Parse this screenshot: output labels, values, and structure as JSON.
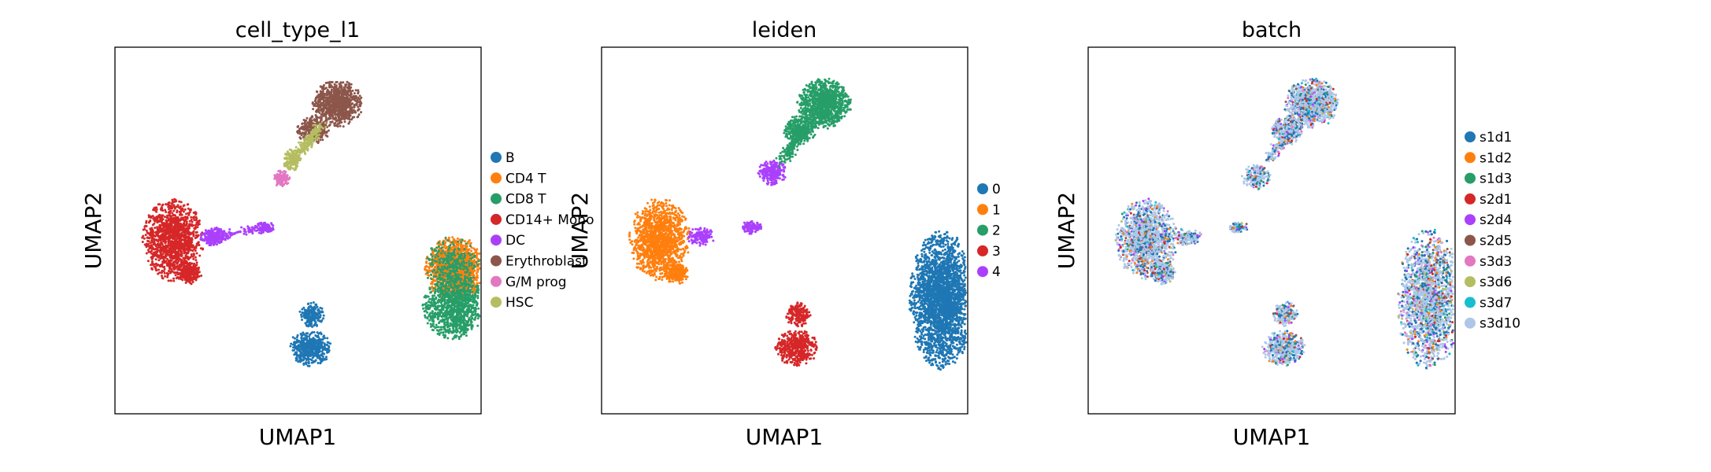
{
  "figure": {
    "panels": [
      "cell_type_l1",
      "leiden",
      "batch"
    ]
  },
  "chart_data": [
    {
      "type": "scatter",
      "title": "cell_type_l1",
      "xlabel": "UMAP1",
      "ylabel": "UMAP2",
      "grid": false,
      "legend": "right",
      "xlim": [
        -2,
        22
      ],
      "ylim": [
        -4,
        20
      ],
      "legend_entries": [
        {
          "label": "B",
          "color": "#1f77b4"
        },
        {
          "label": "CD4 T",
          "color": "#ff7f0e"
        },
        {
          "label": "CD8 T",
          "color": "#279e68"
        },
        {
          "label": "CD14+ Mono",
          "color": "#d62728"
        },
        {
          "label": "DC",
          "color": "#aa40fc"
        },
        {
          "label": "Erythroblast",
          "color": "#8c564b"
        },
        {
          "label": "G/M prog",
          "color": "#e377c2"
        },
        {
          "label": "HSC",
          "color": "#b5bd61"
        }
      ],
      "clusters": [
        {
          "label": "CD14+ Mono",
          "color": "#d62728",
          "cx": 1.8,
          "cy": 7.4,
          "rx": 1.7,
          "ry": 2.3,
          "n": 1400
        },
        {
          "label": "CD14+ Mono",
          "color": "#d62728",
          "cx": 2.9,
          "cy": 5.2,
          "rx": 0.7,
          "ry": 0.6,
          "n": 200
        },
        {
          "label": "DC",
          "color": "#aa40fc",
          "cx": 4.5,
          "cy": 7.6,
          "rx": 0.8,
          "ry": 0.5,
          "n": 220
        },
        {
          "label": "DC",
          "color": "#aa40fc",
          "cx": 7.8,
          "cy": 8.2,
          "rx": 0.6,
          "ry": 0.35,
          "n": 110
        },
        {
          "label": "G/M prog",
          "color": "#e377c2",
          "cx": 8.9,
          "cy": 11.4,
          "rx": 0.5,
          "ry": 0.5,
          "n": 110
        },
        {
          "label": "HSC",
          "color": "#b5bd61",
          "cx": 9.6,
          "cy": 12.6,
          "rx": 0.5,
          "ry": 0.6,
          "n": 100
        },
        {
          "label": "Erythroblast",
          "color": "#8c564b",
          "cx": 12.6,
          "cy": 16.3,
          "rx": 1.4,
          "ry": 1.3,
          "n": 900
        },
        {
          "label": "Erythroblast",
          "color": "#8c564b",
          "cx": 11.0,
          "cy": 14.6,
          "rx": 0.9,
          "ry": 0.8,
          "n": 300
        },
        {
          "label": "B",
          "color": "#1f77b4",
          "cx": 10.8,
          "cy": 0.3,
          "rx": 1.2,
          "ry": 1.0,
          "n": 500
        },
        {
          "label": "B",
          "color": "#1f77b4",
          "cx": 10.9,
          "cy": 2.5,
          "rx": 0.7,
          "ry": 0.7,
          "n": 200
        },
        {
          "label": "CD4 T",
          "color": "#ff7f0e",
          "cx": 20.3,
          "cy": 5.5,
          "rx": 1.7,
          "ry": 1.8,
          "n": 1400
        },
        {
          "label": "CD8 T",
          "color": "#279e68",
          "cx": 20.3,
          "cy": 3.0,
          "rx": 1.8,
          "ry": 1.8,
          "n": 1100
        },
        {
          "label": "CD8 T",
          "color": "#279e68",
          "cx": 20.1,
          "cy": 5.8,
          "rx": 1.6,
          "ry": 1.5,
          "n": 300
        }
      ],
      "bands": [
        {
          "label": "HSC",
          "color": "#b5bd61",
          "x0": 9.4,
          "y0": 12.3,
          "x1": 11.5,
          "y1": 14.8,
          "w": 0.35,
          "n": 240
        },
        {
          "label": "DC",
          "color": "#aa40fc",
          "x0": 4.0,
          "y0": 7.5,
          "x1": 7.2,
          "y1": 8.1,
          "w": 0.25,
          "n": 90
        }
      ]
    },
    {
      "type": "scatter",
      "title": "leiden",
      "xlabel": "UMAP1",
      "ylabel": "UMAP2",
      "grid": false,
      "legend": "right",
      "xlim": [
        -2,
        22
      ],
      "ylim": [
        -4,
        20
      ],
      "legend_entries": [
        {
          "label": "0",
          "color": "#1f77b4"
        },
        {
          "label": "1",
          "color": "#ff7f0e"
        },
        {
          "label": "2",
          "color": "#279e68"
        },
        {
          "label": "3",
          "color": "#d62728"
        },
        {
          "label": "4",
          "color": "#aa40fc"
        }
      ],
      "clusters": [
        {
          "label": "1",
          "color": "#ff7f0e",
          "cx": 1.8,
          "cy": 7.4,
          "rx": 1.7,
          "ry": 2.3,
          "n": 1400
        },
        {
          "label": "1",
          "color": "#ff7f0e",
          "cx": 2.9,
          "cy": 5.2,
          "rx": 0.7,
          "ry": 0.6,
          "n": 200
        },
        {
          "label": "4",
          "color": "#aa40fc",
          "cx": 4.5,
          "cy": 7.6,
          "rx": 0.8,
          "ry": 0.5,
          "n": 150
        },
        {
          "label": "4",
          "color": "#aa40fc",
          "cx": 7.8,
          "cy": 8.2,
          "rx": 0.6,
          "ry": 0.35,
          "n": 110
        },
        {
          "label": "4",
          "color": "#aa40fc",
          "cx": 9.2,
          "cy": 11.8,
          "rx": 0.8,
          "ry": 0.7,
          "n": 260
        },
        {
          "label": "2",
          "color": "#279e68",
          "cx": 12.6,
          "cy": 16.3,
          "rx": 1.5,
          "ry": 1.4,
          "n": 1100
        },
        {
          "label": "2",
          "color": "#279e68",
          "cx": 11.0,
          "cy": 14.6,
          "rx": 0.9,
          "ry": 0.8,
          "n": 300
        },
        {
          "label": "3",
          "color": "#d62728",
          "cx": 10.8,
          "cy": 0.3,
          "rx": 1.2,
          "ry": 1.0,
          "n": 500
        },
        {
          "label": "3",
          "color": "#d62728",
          "cx": 10.9,
          "cy": 2.5,
          "rx": 0.7,
          "ry": 0.7,
          "n": 200
        },
        {
          "label": "0",
          "color": "#1f77b4",
          "cx": 20.3,
          "cy": 3.5,
          "rx": 1.8,
          "ry": 3.9,
          "n": 2800
        }
      ],
      "bands": [
        {
          "label": "2",
          "color": "#279e68",
          "x0": 9.8,
          "y0": 12.6,
          "x1": 11.5,
          "y1": 14.8,
          "w": 0.35,
          "n": 200
        }
      ]
    },
    {
      "type": "scatter",
      "title": "batch",
      "xlabel": "UMAP1",
      "ylabel": "UMAP2",
      "grid": false,
      "legend": "right",
      "xlim": [
        -2,
        22
      ],
      "ylim": [
        -4,
        20
      ],
      "mixed_base_color": "#aec7e8",
      "legend_entries": [
        {
          "label": "s1d1",
          "color": "#1f77b4"
        },
        {
          "label": "s1d2",
          "color": "#ff7f0e"
        },
        {
          "label": "s1d3",
          "color": "#279e68"
        },
        {
          "label": "s2d1",
          "color": "#d62728"
        },
        {
          "label": "s2d4",
          "color": "#aa40fc"
        },
        {
          "label": "s2d5",
          "color": "#8c564b"
        },
        {
          "label": "s3d3",
          "color": "#e377c2"
        },
        {
          "label": "s3d6",
          "color": "#b5bd61"
        },
        {
          "label": "s3d7",
          "color": "#17becf"
        },
        {
          "label": "s3d10",
          "color": "#aec7e8"
        }
      ],
      "clusters": [
        {
          "label": "mixed",
          "color": "#aec7e8",
          "cx": 1.8,
          "cy": 7.4,
          "rx": 1.7,
          "ry": 2.3,
          "n": 1400
        },
        {
          "label": "mixed",
          "color": "#aec7e8",
          "cx": 2.9,
          "cy": 5.2,
          "rx": 0.7,
          "ry": 0.6,
          "n": 200
        },
        {
          "label": "mixed",
          "color": "#aec7e8",
          "cx": 4.5,
          "cy": 7.6,
          "rx": 0.8,
          "ry": 0.5,
          "n": 150
        },
        {
          "label": "mixed",
          "color": "#aec7e8",
          "cx": 7.8,
          "cy": 8.2,
          "rx": 0.6,
          "ry": 0.35,
          "n": 110
        },
        {
          "label": "mixed",
          "color": "#aec7e8",
          "cx": 9.0,
          "cy": 11.5,
          "rx": 0.8,
          "ry": 0.7,
          "n": 200
        },
        {
          "label": "mixed",
          "color": "#aec7e8",
          "cx": 12.6,
          "cy": 16.3,
          "rx": 1.5,
          "ry": 1.4,
          "n": 1100
        },
        {
          "label": "mixed",
          "color": "#aec7e8",
          "cx": 11.0,
          "cy": 14.6,
          "rx": 0.9,
          "ry": 0.8,
          "n": 300
        },
        {
          "label": "mixed",
          "color": "#aec7e8",
          "cx": 10.8,
          "cy": 0.3,
          "rx": 1.2,
          "ry": 1.0,
          "n": 500
        },
        {
          "label": "mixed",
          "color": "#aec7e8",
          "cx": 10.9,
          "cy": 2.5,
          "rx": 0.7,
          "ry": 0.7,
          "n": 200
        },
        {
          "label": "mixed",
          "color": "#aec7e8",
          "cx": 20.3,
          "cy": 3.5,
          "rx": 1.8,
          "ry": 3.9,
          "n": 2800
        }
      ],
      "bands": [
        {
          "label": "mixed",
          "color": "#aec7e8",
          "x0": 9.8,
          "y0": 12.6,
          "x1": 11.5,
          "y1": 14.8,
          "w": 0.35,
          "n": 200
        }
      ]
    }
  ]
}
